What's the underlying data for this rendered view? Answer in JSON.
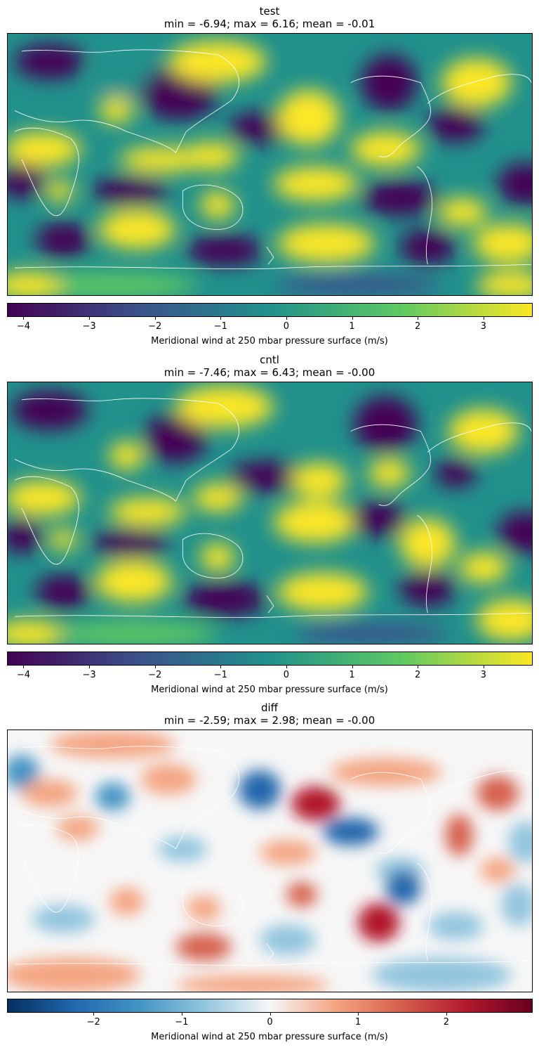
{
  "panels": [
    {
      "name": "test",
      "stats": "min = -6.94; max = 6.16; mean = -0.01",
      "colormap": "viridis",
      "colorbar": {
        "label": "Meridional wind at 250 mbar pressure surface (m/s)",
        "vmin": -4.25,
        "vmax": 3.75,
        "ticks": [
          -4,
          -3,
          -2,
          -1,
          0,
          1,
          2,
          3
        ],
        "tick_labels": [
          "−4",
          "−3",
          "−2",
          "−1",
          "0",
          "1",
          "2",
          "3"
        ]
      }
    },
    {
      "name": "cntl",
      "stats": "min = -7.46; max = 6.43; mean = -0.00",
      "colormap": "viridis",
      "colorbar": {
        "label": "Meridional wind at 250 mbar pressure surface (m/s)",
        "vmin": -4.25,
        "vmax": 3.75,
        "ticks": [
          -4,
          -3,
          -2,
          -1,
          0,
          1,
          2,
          3
        ],
        "tick_labels": [
          "−4",
          "−3",
          "−2",
          "−1",
          "0",
          "1",
          "2",
          "3"
        ]
      }
    },
    {
      "name": "diff",
      "stats": "min = -2.59; max = 2.98; mean = -0.00",
      "colormap": "RdBu_r",
      "colorbar": {
        "label": "Meridional wind at 250 mbar pressure surface (m/s)",
        "vmin": -2.98,
        "vmax": 2.98,
        "ticks": [
          -2,
          -1,
          0,
          1,
          2
        ],
        "tick_labels": [
          "−2",
          "−1",
          "0",
          "1",
          "2"
        ]
      }
    }
  ],
  "colors": {
    "viridis": [
      "#440154",
      "#3b528b",
      "#21918c",
      "#5ec962",
      "#fde725"
    ],
    "RdBu_r": [
      "#053061",
      "#2166ac",
      "#4393c3",
      "#92c5de",
      "#f7f7f7",
      "#f4a582",
      "#d6604d",
      "#b2182b",
      "#67001f"
    ],
    "coastline": "#ffffff"
  }
}
